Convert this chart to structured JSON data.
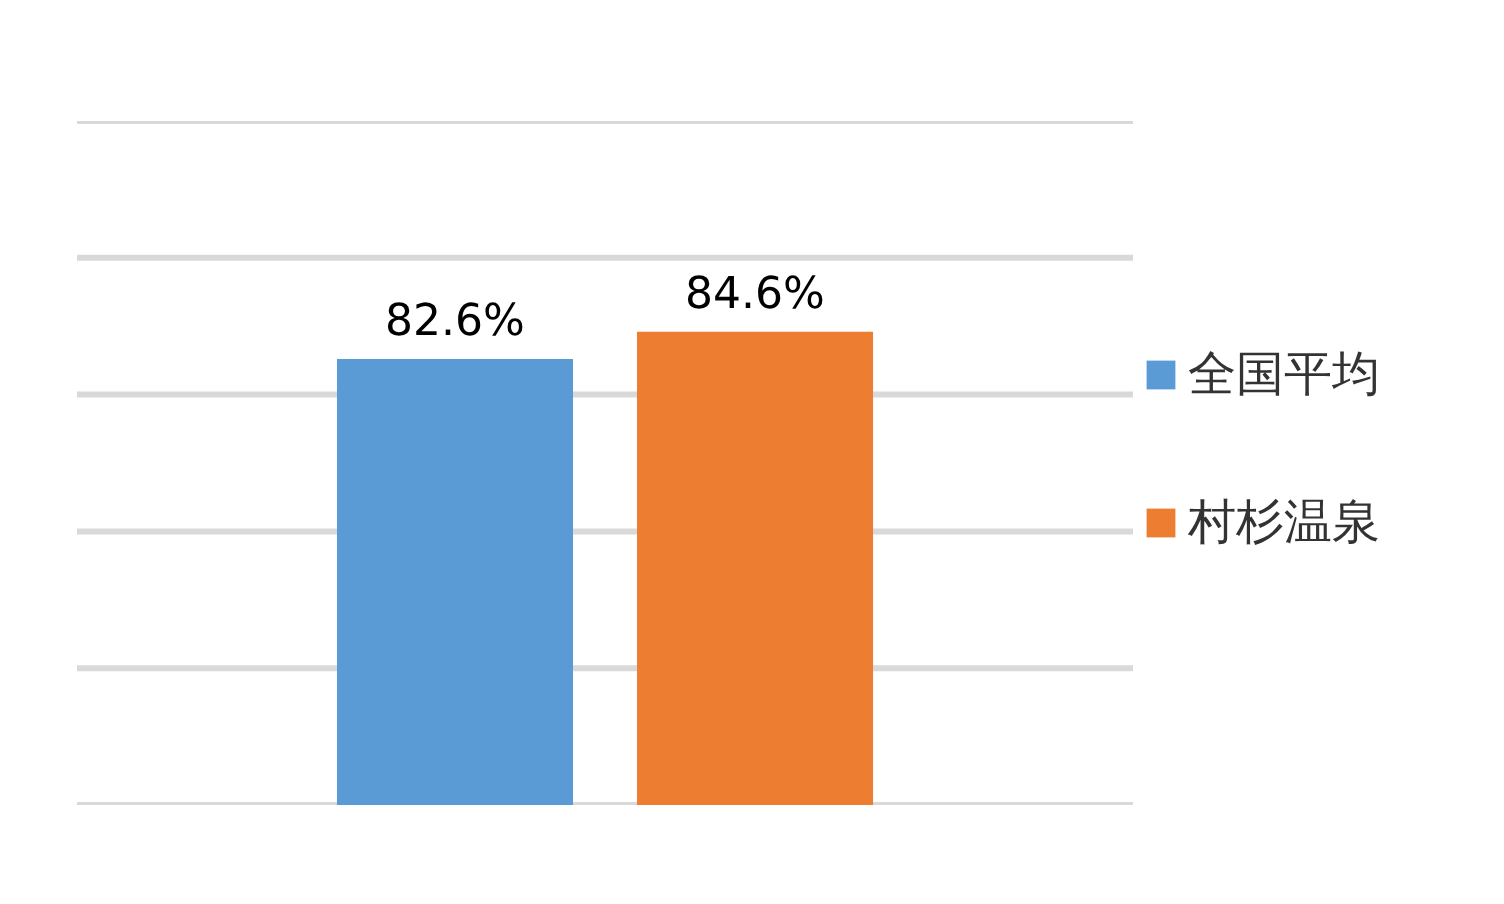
{
  "chart_data": {
    "type": "bar",
    "categories": [
      null
    ],
    "series": [
      {
        "name": "全国平均",
        "color": "#5b9bd5",
        "values": [
          82.6
        ],
        "value_labels": [
          "82.6%"
        ]
      },
      {
        "name": "村杉温泉",
        "color": "#ed7d31",
        "values": [
          84.6
        ],
        "value_labels": [
          "84.6%"
        ]
      }
    ],
    "ylim": [
      50,
      100
    ],
    "yticks": [
      50,
      60,
      70,
      80,
      90,
      100
    ],
    "grid": "y",
    "legend": "right",
    "tick_labels": false
  }
}
